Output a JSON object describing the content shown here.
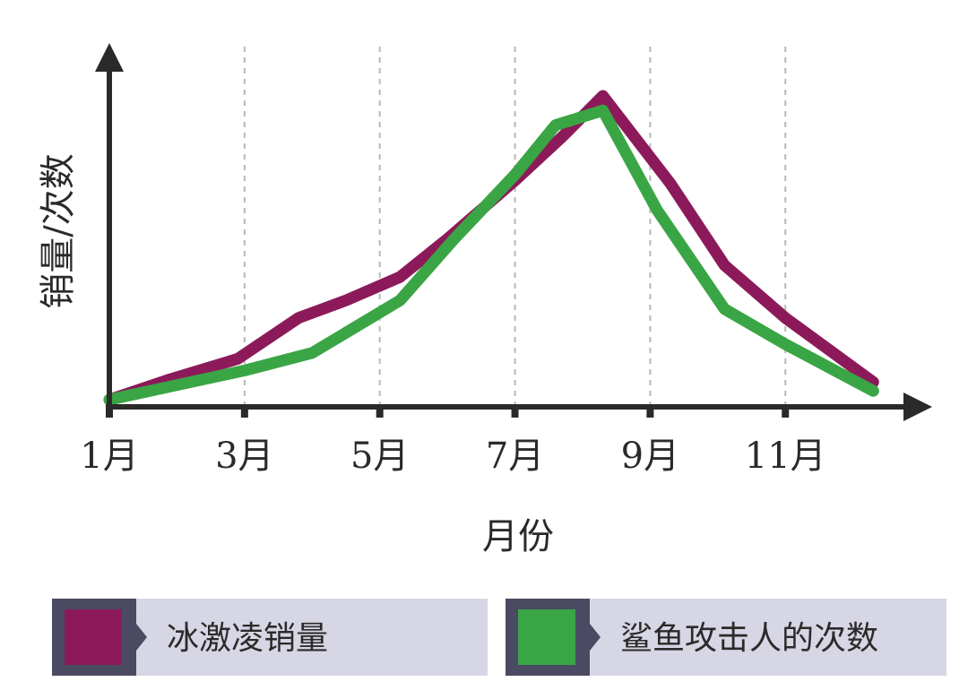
{
  "chart_data": {
    "type": "line",
    "xlabel": "月份",
    "ylabel": "销量/次数",
    "x_ticks": [
      {
        "month": 1,
        "label": "1月"
      },
      {
        "month": 3,
        "label": "3月"
      },
      {
        "month": 5,
        "label": "5月"
      },
      {
        "month": 7,
        "label": "7月"
      },
      {
        "month": 9,
        "label": "9月"
      },
      {
        "month": 11,
        "label": "11月"
      }
    ],
    "xlim": [
      1,
      12.8
    ],
    "ylim": [
      0,
      100
    ],
    "grid": "vertical-dashed",
    "legend_position": "bottom",
    "series": [
      {
        "name": "冰激凌销量",
        "color": "#8c1a5a",
        "points": [
          [
            1,
            0
          ],
          [
            1.9,
            7
          ],
          [
            2.9,
            14
          ],
          [
            3.8,
            28
          ],
          [
            4.5,
            34
          ],
          [
            5.3,
            42
          ],
          [
            6,
            55
          ],
          [
            7,
            75
          ],
          [
            7.7,
            90
          ],
          [
            8.3,
            104
          ],
          [
            9.3,
            74
          ],
          [
            10.1,
            46
          ],
          [
            11,
            28
          ],
          [
            12.3,
            6
          ]
        ]
      },
      {
        "name": "鲨鱼攻击人的次数",
        "color": "#3aa544",
        "points": [
          [
            1,
            0
          ],
          [
            2,
            5
          ],
          [
            3,
            10
          ],
          [
            4,
            16
          ],
          [
            5.3,
            34
          ],
          [
            6.1,
            55
          ],
          [
            7,
            77
          ],
          [
            7.6,
            94
          ],
          [
            8.3,
            99
          ],
          [
            9.1,
            65
          ],
          [
            10.1,
            31
          ],
          [
            11,
            19
          ],
          [
            12.3,
            3
          ]
        ]
      }
    ]
  }
}
